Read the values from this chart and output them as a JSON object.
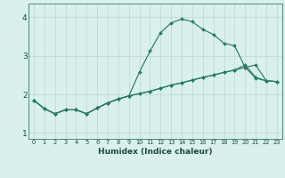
{
  "xlabel": "Humidex (Indice chaleur)",
  "background_color": "#daf0ec",
  "grid_color": "#b8d8d2",
  "line_color": "#2a7a6a",
  "xlim": [
    -0.5,
    23.5
  ],
  "ylim": [
    0.85,
    4.35
  ],
  "xticks": [
    0,
    1,
    2,
    3,
    4,
    5,
    6,
    7,
    8,
    9,
    10,
    11,
    12,
    13,
    14,
    15,
    16,
    17,
    18,
    19,
    20,
    21,
    22,
    23
  ],
  "yticks": [
    1,
    2,
    3,
    4
  ],
  "line1_x": [
    0,
    1,
    2,
    3,
    4,
    5,
    6,
    7,
    8,
    9,
    10,
    11,
    12,
    13,
    14,
    15,
    16,
    17,
    18,
    19,
    20,
    21,
    22,
    23
  ],
  "line1_y": [
    1.85,
    1.63,
    1.5,
    1.6,
    1.6,
    1.5,
    1.65,
    1.78,
    1.88,
    1.96,
    2.02,
    2.08,
    2.16,
    2.24,
    2.3,
    2.37,
    2.44,
    2.5,
    2.57,
    2.63,
    2.7,
    2.76,
    2.35,
    2.33
  ],
  "line2_x": [
    0,
    1,
    2,
    3,
    4,
    5,
    6,
    7,
    8,
    9,
    10,
    11,
    12,
    13,
    14,
    15,
    16,
    17,
    18,
    19,
    20,
    21,
    22,
    23
  ],
  "line2_y": [
    1.85,
    1.63,
    1.5,
    1.6,
    1.6,
    1.5,
    1.65,
    1.78,
    1.88,
    1.96,
    2.58,
    3.12,
    3.6,
    3.85,
    3.95,
    3.88,
    3.68,
    3.55,
    3.32,
    3.26,
    2.7,
    2.42,
    2.35,
    2.33
  ],
  "line3_x": [
    0,
    1,
    2,
    3,
    4,
    5,
    6,
    7,
    8,
    9,
    10,
    11,
    12,
    13,
    14,
    15,
    16,
    17,
    18,
    19,
    20,
    21,
    22,
    23
  ],
  "line3_y": [
    1.85,
    1.63,
    1.5,
    1.6,
    1.6,
    1.5,
    1.65,
    1.78,
    1.88,
    1.96,
    2.02,
    2.08,
    2.16,
    2.24,
    2.3,
    2.37,
    2.44,
    2.5,
    2.57,
    2.63,
    2.76,
    2.44,
    2.35,
    2.33
  ]
}
